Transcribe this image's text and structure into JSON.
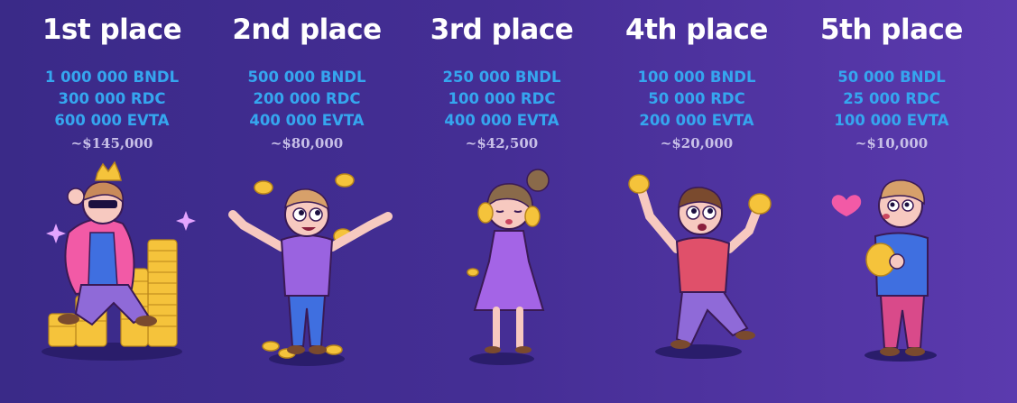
{
  "places": [
    {
      "title": "1st place",
      "amounts": [
        "1 000 000 BNDL",
        "300 000 RDC",
        "600 000 EVTA"
      ],
      "usd": "~$145,000",
      "illustration": "character-on-coin-throne"
    },
    {
      "title": "2nd place",
      "amounts": [
        "500 000 BNDL",
        "200 000 RDC",
        "400 000 EVTA"
      ],
      "usd": "~$80,000",
      "illustration": "character-juggling-coins"
    },
    {
      "title": "3rd place",
      "amounts": [
        "250 000 BNDL",
        "100 000 RDC",
        "400 000 EVTA"
      ],
      "usd": "~$42,500",
      "illustration": "woman-holding-coins"
    },
    {
      "title": "4th place",
      "amounts": [
        "100 000 BNDL",
        "50 000 RDC",
        "200 000 EVTA"
      ],
      "usd": "~$20,000",
      "illustration": "character-dancing-with-coins"
    },
    {
      "title": "5th place",
      "amounts": [
        "50 000 BNDL",
        "25 000 RDC",
        "100 000 EVTA"
      ],
      "usd": "~$10,000",
      "illustration": "character-hugging-coins"
    }
  ],
  "colors": {
    "background_start": "#3a2a88",
    "background_end": "#5b3aae",
    "title": "#ffffff",
    "token_amount": "#35a6ef",
    "usd_value": "#c8c0e8",
    "coin": "#f5c33b"
  }
}
